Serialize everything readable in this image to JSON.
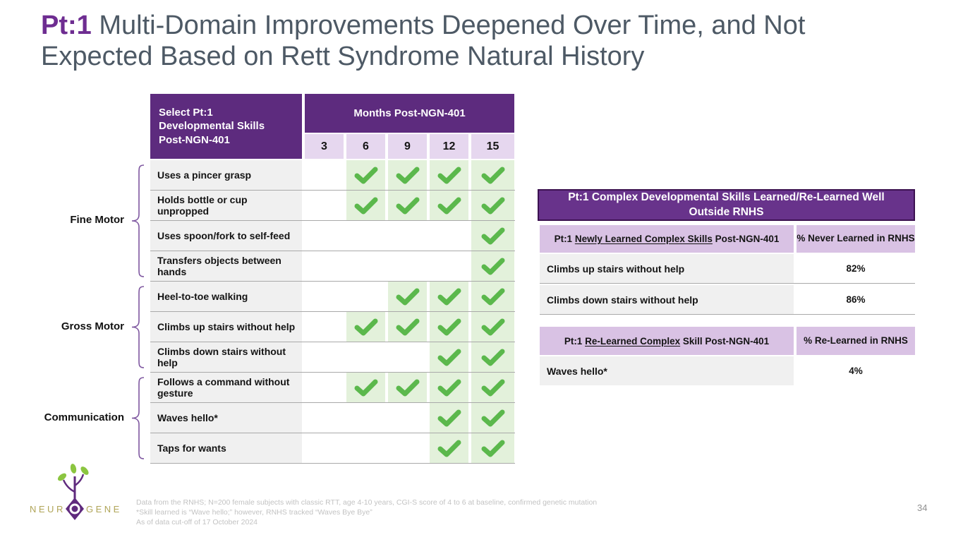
{
  "title": {
    "prefix": "Pt:1",
    "line1": " Multi-Domain Improvements Deepened Over Time, and Not",
    "line2": "Expected Based on Rett Syndrome Natural History"
  },
  "page_number": "34",
  "skills_table": {
    "corner_header": "Select Pt:1\nDevelopmental Skills\nPost-NGN-401",
    "months_header": "Months Post-NGN-401",
    "months": [
      "3",
      "6",
      "9",
      "12",
      "15"
    ],
    "rows": [
      {
        "skill": "Uses a pincer grasp",
        "checks": [
          false,
          true,
          true,
          true,
          true
        ]
      },
      {
        "skill": "Holds bottle or cup unpropped",
        "checks": [
          false,
          true,
          true,
          true,
          true
        ]
      },
      {
        "skill": "Uses spoon/fork to self-feed",
        "checks": [
          false,
          false,
          false,
          false,
          true
        ]
      },
      {
        "skill": "Transfers objects between hands",
        "checks": [
          false,
          false,
          false,
          false,
          true
        ]
      },
      {
        "skill": "Heel-to-toe walking",
        "checks": [
          false,
          false,
          true,
          true,
          true
        ]
      },
      {
        "skill": "Climbs up stairs without help",
        "checks": [
          false,
          true,
          true,
          true,
          true
        ]
      },
      {
        "skill": "Climbs down stairs without help",
        "checks": [
          false,
          false,
          false,
          true,
          true
        ]
      },
      {
        "skill": "Follows a command without gesture",
        "checks": [
          false,
          true,
          true,
          true,
          true
        ]
      },
      {
        "skill": "Waves hello*",
        "checks": [
          false,
          false,
          false,
          true,
          true
        ]
      },
      {
        "skill": "Taps for wants",
        "checks": [
          false,
          false,
          false,
          true,
          true
        ]
      }
    ],
    "groups": [
      {
        "label": "Fine Motor",
        "from": 0,
        "to": 3
      },
      {
        "label": "Gross Motor",
        "from": 4,
        "to": 6
      },
      {
        "label": "Communication",
        "from": 7,
        "to": 9
      }
    ]
  },
  "complex_panel": {
    "banner": "Pt:1 Complex Developmental Skills Learned/Re-Learned Well Outside RNHS",
    "newly": {
      "prefix": "Pt:1 ",
      "underlined": "Newly Learned Complex Skills",
      "suffix": " Post-NGN-401",
      "value_header": "% Never Learned in RNHS",
      "rows": [
        {
          "skill": "Climbs up stairs without help",
          "value": "82%"
        },
        {
          "skill": "Climbs down stairs without help",
          "value": "86%"
        }
      ]
    },
    "relearned": {
      "prefix": "Pt:1 ",
      "underlined": "Re-Learned Complex",
      "suffix": " Skill Post-NGN-401",
      "value_header": "% Re-Learned in RNHS",
      "rows": [
        {
          "skill": "Waves hello*",
          "value": "4%"
        }
      ]
    }
  },
  "footnotes": [
    "Data from the RNHS; N=200 female subjects with classic RTT, age 4-10 years, CGI-S score of 4 to 6 at baseline, confirmed genetic mutation",
    "*Skill learned is “Wave hello;” however, RNHS tracked “Waves Bye Bye”",
    "As of data cut-off of 17 October 2024"
  ],
  "logo": {
    "left": "NEUR",
    "right": "GENE"
  },
  "colors": {
    "purple_dark": "#5d2b7e",
    "purple_banner": "#68338b",
    "banner_border": "#3c1150",
    "lavender_light": "#e6d7ef",
    "lavender": "#d9c2e4",
    "green_check": "#5bb84c",
    "green_cell": "#e3f1db",
    "row_gray": "#f0f0f0",
    "separator": "#a9a9a9",
    "title_gray": "#4d5965",
    "title_purple": "#6e2d91",
    "bracket": "#7e57a0",
    "footnote": "#c3c3c3",
    "page": "#909090",
    "logo_gold": "#b0a558",
    "leaf_green": "#8bc540"
  }
}
